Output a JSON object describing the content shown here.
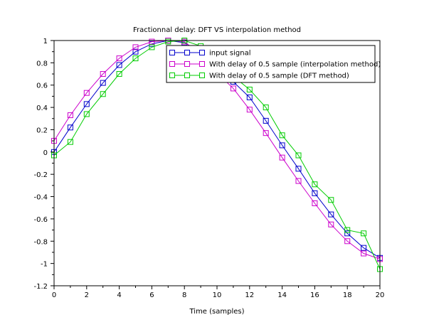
{
  "chart_data": {
    "type": "line",
    "title": "Fractionnal delay: DFT VS interpolation method",
    "xlabel": "Time (samples)",
    "ylabel": "",
    "xlim": [
      0,
      20
    ],
    "ylim": [
      -1.2,
      1
    ],
    "xticks": [
      0,
      2,
      4,
      6,
      8,
      10,
      12,
      14,
      16,
      18,
      20
    ],
    "yticks": [
      -1.2,
      -1,
      -0.8,
      -0.6,
      -0.4,
      -0.2,
      0,
      0.2,
      0.4,
      0.6,
      0.8,
      1
    ],
    "xtick_labels": [
      "0",
      "2",
      "4",
      "6",
      "8",
      "10",
      "12",
      "14",
      "16",
      "18",
      "20"
    ],
    "ytick_labels": [
      "-1.2",
      "-1",
      "-0.8",
      "-0.6",
      "-0.4",
      "-0.2",
      "0",
      "0.2",
      "0.4",
      "0.6",
      "0.8",
      "1"
    ],
    "grid": false,
    "legend_position": "top-right",
    "x": [
      0,
      1,
      2,
      3,
      4,
      5,
      6,
      7,
      8,
      9,
      10,
      11,
      12,
      13,
      14,
      15,
      16,
      17,
      18,
      19,
      20
    ],
    "series": [
      {
        "name": "input signal",
        "color": "#0000cc",
        "marker": "square",
        "values": [
          0,
          0.22,
          0.43,
          0.62,
          0.78,
          0.9,
          0.97,
          1.0,
          0.98,
          0.9,
          0.75,
          0.63,
          0.49,
          0.28,
          0.06,
          -0.15,
          -0.37,
          -0.56,
          -0.73,
          -0.86,
          -0.95
        ]
      },
      {
        "name": "With delay of 0.5 sample (interpolation method)",
        "color": "#cc00cc",
        "marker": "square",
        "values": [
          0.1,
          0.33,
          0.53,
          0.7,
          0.84,
          0.94,
          0.99,
          1.0,
          0.99,
          0.87,
          0.71,
          0.57,
          0.38,
          0.17,
          -0.05,
          -0.26,
          -0.46,
          -0.65,
          -0.8,
          -0.91,
          -0.96
        ]
      },
      {
        "name": "With delay of 0.5 sample (DFT method)",
        "color": "#00cc00",
        "marker": "square",
        "values": [
          -0.03,
          0.09,
          0.34,
          0.52,
          0.7,
          0.84,
          0.94,
          0.99,
          1.0,
          0.95,
          0.82,
          0.68,
          0.56,
          0.4,
          0.15,
          -0.03,
          -0.29,
          -0.43,
          -0.7,
          -0.73,
          -1.05
        ]
      }
    ]
  }
}
